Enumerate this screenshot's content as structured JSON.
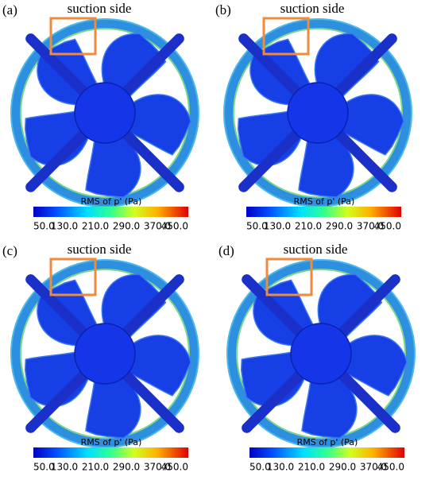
{
  "panels": [
    {
      "label": "(a)",
      "annotation": "suction side",
      "colorbar": {
        "title": "RMS of p' (Pa)",
        "ticks": [
          "50.0",
          "130.0",
          "210.0",
          "290.0",
          "370.0",
          "450.0"
        ]
      }
    },
    {
      "label": "(b)",
      "annotation": "suction side",
      "colorbar": {
        "title": "RMS of p' (Pa)",
        "ticks": [
          "50.0",
          "130.0",
          "210.0",
          "290.0",
          "370.0",
          "450.0"
        ]
      }
    },
    {
      "label": "(c)",
      "annotation": "suction side",
      "colorbar": {
        "title": "RMS of p' (Pa)",
        "ticks": [
          "50.0",
          "130.0",
          "210.0",
          "290.0",
          "370.0",
          "450.0"
        ]
      }
    },
    {
      "label": "(d)",
      "annotation": "suction side",
      "colorbar": {
        "title": "RMS of p' (Pa)",
        "ticks": [
          "50.0",
          "130.0",
          "210.0",
          "290.0",
          "370.0",
          "450.0"
        ]
      }
    }
  ]
}
